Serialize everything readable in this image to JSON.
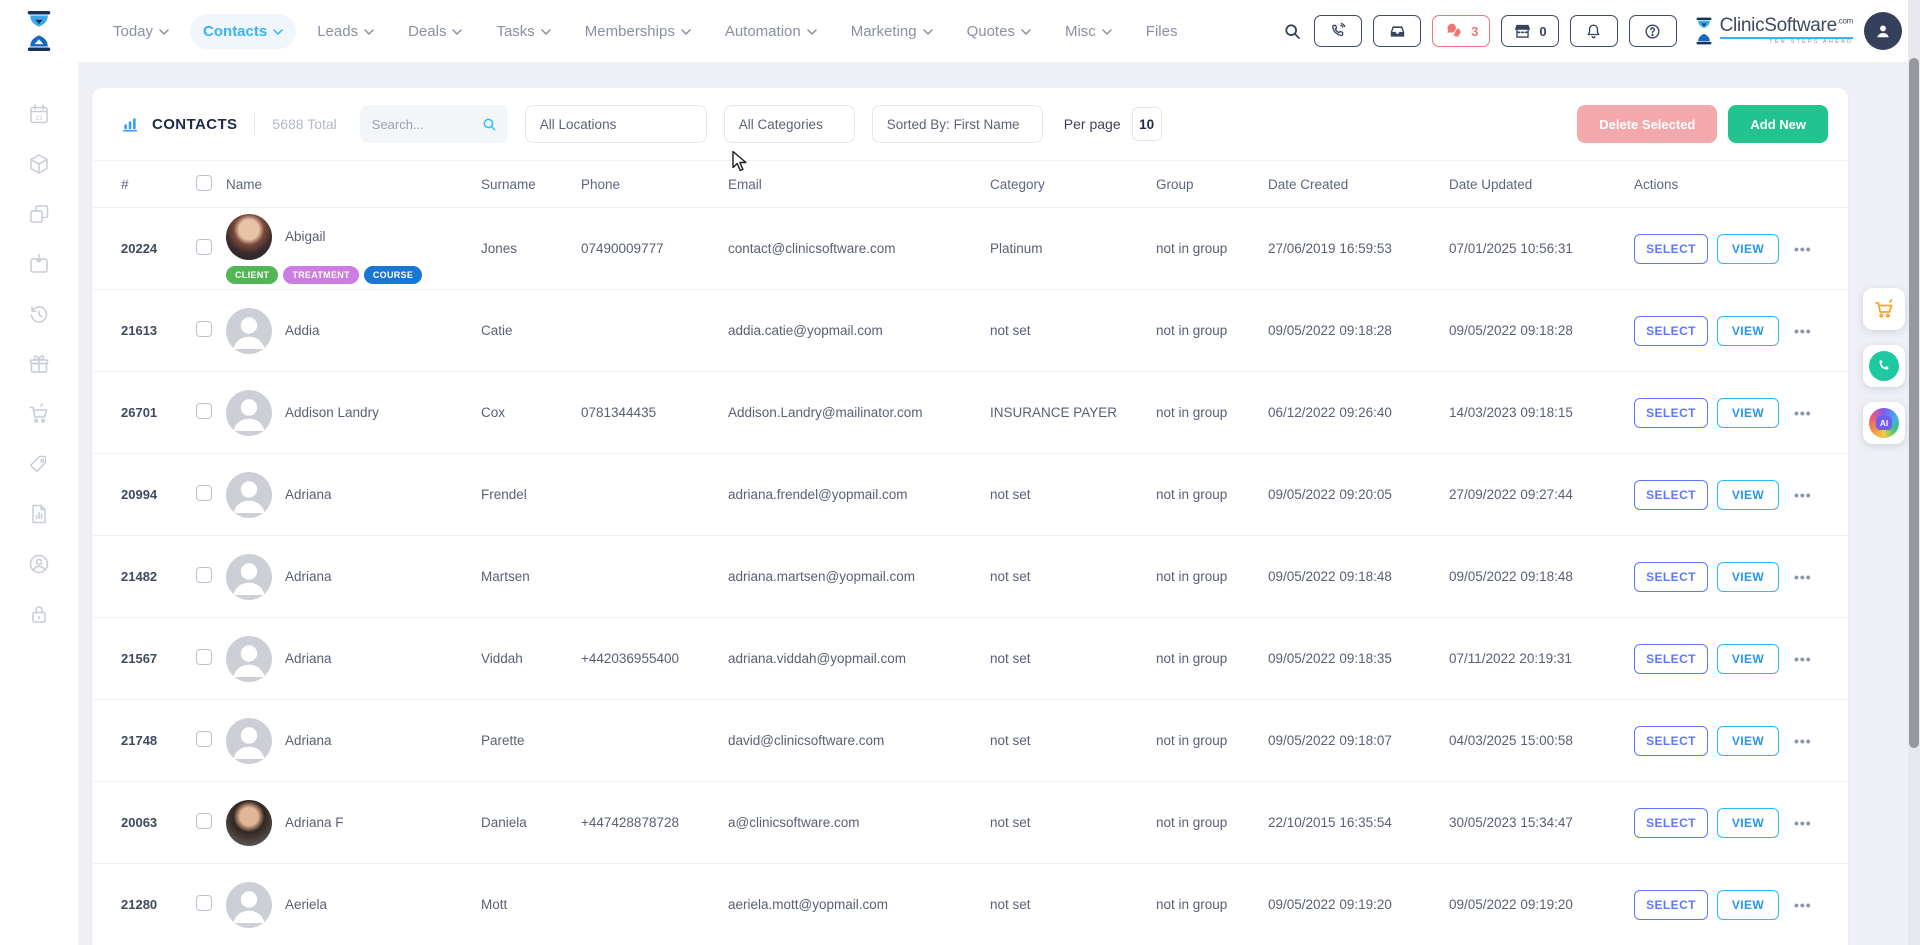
{
  "header": {
    "nav": [
      {
        "label": "Today",
        "chevron": true,
        "active": false
      },
      {
        "label": "Contacts",
        "chevron": true,
        "active": true
      },
      {
        "label": "Leads",
        "chevron": true,
        "active": false
      },
      {
        "label": "Deals",
        "chevron": true,
        "active": false
      },
      {
        "label": "Tasks",
        "chevron": true,
        "active": false
      },
      {
        "label": "Memberships",
        "chevron": true,
        "active": false
      },
      {
        "label": "Automation",
        "chevron": true,
        "active": false
      },
      {
        "label": "Marketing",
        "chevron": true,
        "active": false
      },
      {
        "label": "Quotes",
        "chevron": true,
        "active": false
      },
      {
        "label": "Misc",
        "chevron": true,
        "active": false
      },
      {
        "label": "Files",
        "chevron": false,
        "active": false
      }
    ],
    "chat_count": "3",
    "store_count": "0",
    "brand": {
      "name": "ClinicSoftware",
      "tld": ".com",
      "tagline": "TEN STEPS AHEAD"
    }
  },
  "sidebar": {
    "icons": [
      "calendar-icon",
      "products-icon",
      "pages-icon",
      "bookings-icon",
      "history-icon",
      "gifts-icon",
      "cart-icon",
      "tags-icon",
      "reports-icon",
      "account-icon",
      "lock-icon"
    ]
  },
  "toolbar": {
    "title": "CONTACTS",
    "total": "5688 Total",
    "search_placeholder": "Search...",
    "filter_locations": "All Locations",
    "filter_categories": "All Categories",
    "filter_sort": "Sorted By: First Name",
    "per_page_label": "Per page",
    "per_page_value": "10",
    "delete_label": "Delete Selected",
    "add_label": "Add New"
  },
  "table": {
    "headers": [
      "#",
      "Name",
      "Surname",
      "Phone",
      "Email",
      "Category",
      "Group",
      "Date Created",
      "Date Updated",
      "Actions"
    ],
    "select_label": "SELECT",
    "view_label": "VIEW",
    "more_label": "•••",
    "rows": [
      {
        "id": "20224",
        "name": "Abigail",
        "avatar": "photo-a",
        "badges": [
          {
            "label": "CLIENT",
            "color": "#53b654"
          },
          {
            "label": "TREATMENT",
            "color": "#cd7ce2"
          },
          {
            "label": "COURSE",
            "color": "#1976d2"
          }
        ],
        "surname": "Jones",
        "phone": "07490009777",
        "email": "contact@clinicsoftware.com",
        "category": "Platinum",
        "group": "not in group",
        "created": "27/06/2019 16:59:53",
        "updated": "07/01/2025 10:56:31"
      },
      {
        "id": "21613",
        "name": "Addia",
        "avatar": "default",
        "badges": [],
        "surname": "Catie",
        "phone": "",
        "email": "addia.catie@yopmail.com",
        "category": "not set",
        "group": "not in group",
        "created": "09/05/2022 09:18:28",
        "updated": "09/05/2022 09:18:28"
      },
      {
        "id": "26701",
        "name": "Addison Landry",
        "avatar": "default",
        "badges": [],
        "surname": "Cox",
        "phone": "0781344435",
        "email": "Addison.Landry@mailinator.com",
        "category": "INSURANCE PAYER",
        "group": "not in group",
        "created": "06/12/2022 09:26:40",
        "updated": "14/03/2023 09:18:15"
      },
      {
        "id": "20994",
        "name": "Adriana",
        "avatar": "default",
        "badges": [],
        "surname": "Frendel",
        "phone": "",
        "email": "adriana.frendel@yopmail.com",
        "category": "not set",
        "group": "not in group",
        "created": "09/05/2022 09:20:05",
        "updated": "27/09/2022 09:27:44"
      },
      {
        "id": "21482",
        "name": "Adriana",
        "avatar": "default",
        "badges": [],
        "surname": "Martsen",
        "phone": "",
        "email": "adriana.martsen@yopmail.com",
        "category": "not set",
        "group": "not in group",
        "created": "09/05/2022 09:18:48",
        "updated": "09/05/2022 09:18:48"
      },
      {
        "id": "21567",
        "name": "Adriana",
        "avatar": "default",
        "badges": [],
        "surname": "Viddah",
        "phone": "+442036955400",
        "email": "adriana.viddah@yopmail.com",
        "category": "not set",
        "group": "not in group",
        "created": "09/05/2022 09:18:35",
        "updated": "07/11/2022 20:19:31"
      },
      {
        "id": "21748",
        "name": "Adriana",
        "avatar": "default",
        "badges": [],
        "surname": "Parette",
        "phone": "",
        "email": "david@clinicsoftware.com",
        "category": "not set",
        "group": "not in group",
        "created": "09/05/2022 09:18:07",
        "updated": "04/03/2025 15:00:58"
      },
      {
        "id": "20063",
        "name": "Adriana F",
        "avatar": "photo-b",
        "badges": [],
        "surname": "Daniela",
        "phone": "+447428878728",
        "email": "a@clinicsoftware.com",
        "category": "not set",
        "group": "not in group",
        "created": "22/10/2015 16:35:54",
        "updated": "30/05/2023 15:34:47"
      },
      {
        "id": "21280",
        "name": "Aeriela",
        "avatar": "default",
        "badges": [],
        "surname": "Mott",
        "phone": "",
        "email": "aeriela.mott@yopmail.com",
        "category": "not set",
        "group": "not in group",
        "created": "09/05/2022 09:19:20",
        "updated": "09/05/2022 09:19:20"
      }
    ]
  },
  "floating": {
    "ai_label": "AI"
  },
  "colors": {
    "accent_blue": "#35b5f3",
    "select_purple": "#5d78ff",
    "view_cyan": "#27bdf4",
    "delete_pink": "#f3a8ab",
    "add_green": "#22c38e",
    "chat_red": "#f07576"
  }
}
